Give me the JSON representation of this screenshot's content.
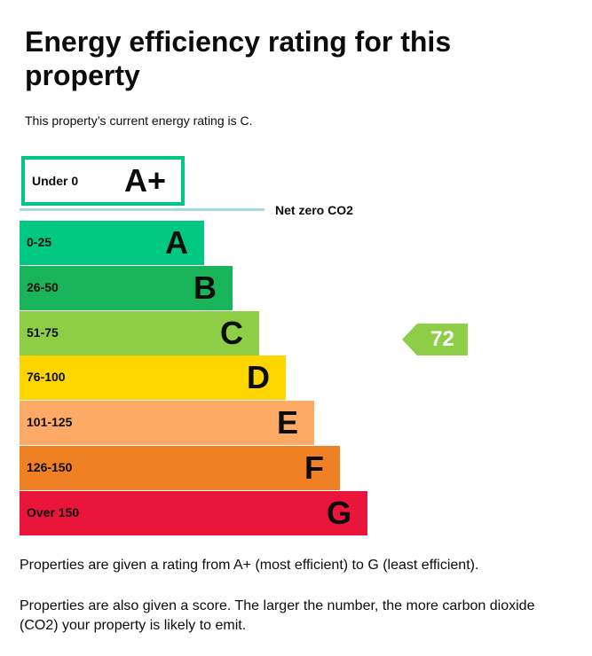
{
  "header": {
    "title": "Energy efficiency rating for this property",
    "intro": "This property’s current energy rating is C."
  },
  "top_band": {
    "range": "Under 0",
    "letter": "A+",
    "color": "#00c781"
  },
  "net_zero": "Net zero CO2",
  "bands": [
    {
      "range": "0-25",
      "letter": "A",
      "color": "#00c781"
    },
    {
      "range": "26-50",
      "letter": "B",
      "color": "#19b459"
    },
    {
      "range": "51-75",
      "letter": "C",
      "color": "#8dce46"
    },
    {
      "range": "76-100",
      "letter": "D",
      "color": "#ffd500"
    },
    {
      "range": "101-125",
      "letter": "E",
      "color": "#fcaa65"
    },
    {
      "range": "126-150",
      "letter": "F",
      "color": "#ef8023"
    },
    {
      "range": "Over 150",
      "letter": "G",
      "color": "#e9153b"
    }
  ],
  "current": {
    "score": "72",
    "color": "#8dce46"
  },
  "footer": [
    "Properties are given a rating from A+ (most efficient) to G (least efficient).",
    "Properties are also given a score. The larger the number, the more carbon dioxide (CO2) your property is likely to emit."
  ]
}
